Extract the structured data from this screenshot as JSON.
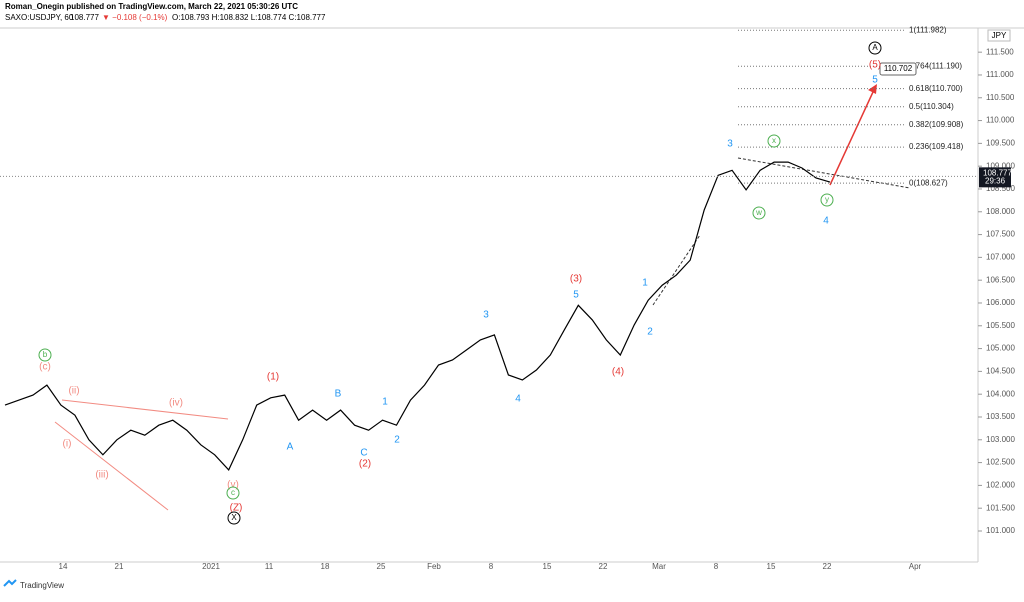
{
  "header": {
    "publisher": "Roman_Onegin published on TradingView.com, March 22, 2021 05:30:26 UTC",
    "symbol": "SAXO:USDJPY, 60",
    "last": "108.777",
    "change": "▼ −0.108 (−0.1%)",
    "ohlc": "O:108.793 H:108.832 L:108.774 C:108.777",
    "footer": "TradingView"
  },
  "chart_data": {
    "type": "line",
    "currency": "JPY",
    "color": "#000000",
    "x_labels": [
      "14",
      "21",
      "2021",
      "11",
      "18",
      "25",
      "Feb",
      "8",
      "15",
      "22",
      "Mar",
      "8",
      "15",
      "22",
      "Apr"
    ],
    "values": [
      103.76,
      103.87,
      103.98,
      104.2,
      103.76,
      103.54,
      103.0,
      102.67,
      103.0,
      103.21,
      103.1,
      103.32,
      103.43,
      103.21,
      102.89,
      102.67,
      102.34,
      103.0,
      103.76,
      103.92,
      103.98,
      103.43,
      103.65,
      103.43,
      103.65,
      103.32,
      103.21,
      103.43,
      103.32,
      103.87,
      104.2,
      104.64,
      104.75,
      104.97,
      105.19,
      105.3,
      104.42,
      104.31,
      104.53,
      104.86,
      105.41,
      105.95,
      105.63,
      105.19,
      104.86,
      105.52,
      106.06,
      106.39,
      106.61,
      106.94,
      108.04,
      108.8,
      108.91,
      108.48,
      108.91,
      109.09,
      109.09,
      108.96,
      108.74,
      108.65
    ],
    "ylim": [
      100.32,
      112.03
    ],
    "yticks": [
      {
        "value": 101,
        "label": "101.000"
      },
      {
        "value": 101.5,
        "label": "101.500"
      },
      {
        "value": 102,
        "label": "102.000"
      },
      {
        "value": 102.5,
        "label": "102.500"
      },
      {
        "value": 103,
        "label": "103.000"
      },
      {
        "value": 103.5,
        "label": "103.500"
      },
      {
        "value": 104,
        "label": "104.000"
      },
      {
        "value": 104.5,
        "label": "104.500"
      },
      {
        "value": 105,
        "label": "105.000"
      },
      {
        "value": 105.5,
        "label": "105.500"
      },
      {
        "value": 106,
        "label": "106.000"
      },
      {
        "value": 106.5,
        "label": "106.500"
      },
      {
        "value": 107,
        "label": "107.000"
      },
      {
        "value": 107.5,
        "label": "107.500"
      },
      {
        "value": 108,
        "label": "108.000"
      },
      {
        "value": 108.5,
        "label": "108.500"
      },
      {
        "value": 109,
        "label": "109.000"
      },
      {
        "value": 109.5,
        "label": "109.500"
      },
      {
        "value": 110,
        "label": "110.000"
      },
      {
        "value": 110.5,
        "label": "110.500"
      },
      {
        "value": 111,
        "label": "111.000"
      },
      {
        "value": 111.5,
        "label": "111.500"
      }
    ],
    "price_tag": {
      "value": 108.777,
      "label": "108.777",
      "timer": "29:36"
    },
    "target": {
      "value": 110.702,
      "label": "110.702"
    },
    "fib_levels": [
      {
        "value": 111.982,
        "label": "1(111.982)"
      },
      {
        "value": 111.19,
        "label": "0.764(111.190)"
      },
      {
        "value": 110.7,
        "label": "0.618(110.700)"
      },
      {
        "value": 110.304,
        "label": "0.5(110.304)"
      },
      {
        "value": 109.908,
        "label": "0.382(109.908)"
      },
      {
        "value": 109.418,
        "label": "0.236(109.418)"
      },
      {
        "value": 108.627,
        "label": "0(108.627)"
      }
    ],
    "wave_labels": [
      "b",
      "(c)",
      "(ii)",
      "(i)",
      "(iii)",
      "(iv)",
      "(v)",
      "c",
      "(Z)",
      "X",
      "(1)",
      "A",
      "B",
      "C",
      "(2)",
      "1",
      "2",
      "3",
      "4",
      "(3)",
      "5",
      "(4)",
      "1",
      "2",
      "3",
      "x",
      "w",
      "y",
      "4",
      "A",
      "(5)",
      "5"
    ]
  }
}
